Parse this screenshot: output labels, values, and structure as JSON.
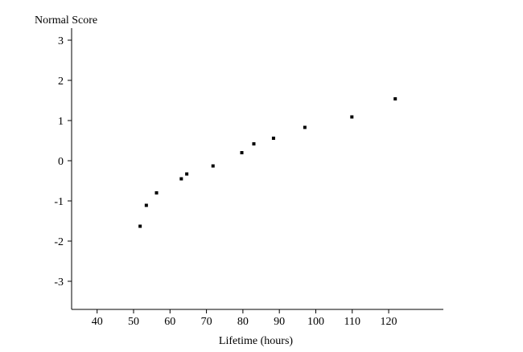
{
  "chart_data": {
    "type": "scatter",
    "title": "",
    "xlabel": "Lifetime (hours)",
    "ylabel": "Normal Score",
    "xlim": [
      33,
      135
    ],
    "ylim": [
      -3.7,
      3.3
    ],
    "x_ticks": [
      40,
      50,
      60,
      70,
      80,
      90,
      100,
      110,
      120
    ],
    "y_ticks": [
      3,
      2,
      1,
      0,
      -1,
      -2,
      -3
    ],
    "grid": false,
    "legend": "none",
    "marker_color": "#000000",
    "series": [
      {
        "points": [
          {
            "x": 51.8,
            "y": -1.63
          },
          {
            "x": 53.5,
            "y": -1.11
          },
          {
            "x": 56.3,
            "y": -0.8
          },
          {
            "x": 63.1,
            "y": -0.45
          },
          {
            "x": 64.6,
            "y": -0.33
          },
          {
            "x": 71.8,
            "y": -0.13
          },
          {
            "x": 79.7,
            "y": 0.2
          },
          {
            "x": 83.0,
            "y": 0.42
          },
          {
            "x": 88.4,
            "y": 0.56
          },
          {
            "x": 97.0,
            "y": 0.83
          },
          {
            "x": 109.9,
            "y": 1.09
          },
          {
            "x": 121.8,
            "y": 1.54
          }
        ]
      }
    ]
  }
}
